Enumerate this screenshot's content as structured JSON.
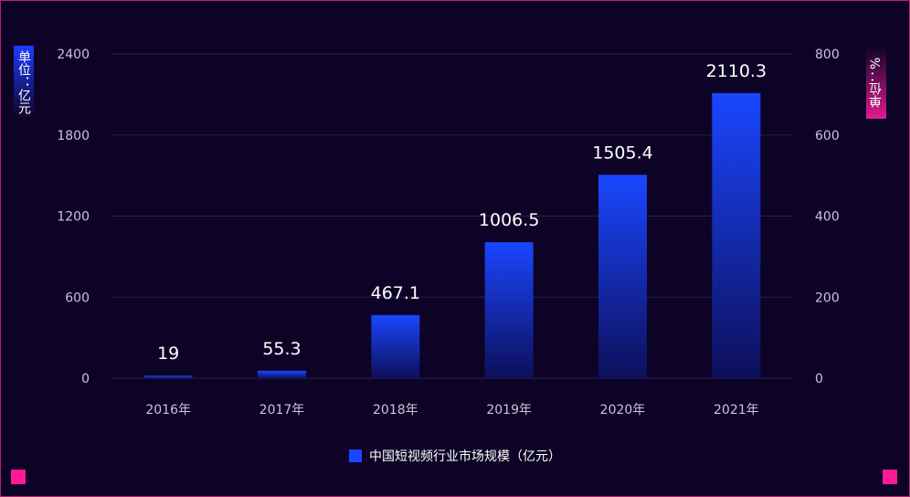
{
  "chart_data": {
    "type": "bar",
    "categories": [
      "2016年",
      "2017年",
      "2018年",
      "2019年",
      "2020年",
      "2021年"
    ],
    "series": [
      {
        "name": "中国短视频行业市场规模（亿元）",
        "values": [
          19,
          55.3,
          467.1,
          1006.5,
          1505.4,
          2110.3
        ],
        "color": "#1a46ff"
      }
    ],
    "data_labels": [
      "19",
      "55.3",
      "467.1",
      "1006.5",
      "1505.4",
      "2110.3"
    ],
    "y_left": {
      "label": "单位：亿元",
      "ticks": [
        0,
        600,
        1200,
        1800,
        2400
      ],
      "range": [
        0,
        2400
      ]
    },
    "y_right": {
      "label": "单位：%",
      "ticks": [
        0,
        200,
        400,
        600,
        800
      ],
      "range": [
        0,
        800
      ]
    },
    "grid": true,
    "legend_position": "bottom"
  },
  "colors": {
    "background": "#0d0326",
    "grid": "#2a2050",
    "axis_text": "#c9c4dc",
    "bar_top": "#1a46ff",
    "bar_bottom": "#0d0f5a",
    "accent_pink": "#ff1a9a"
  }
}
